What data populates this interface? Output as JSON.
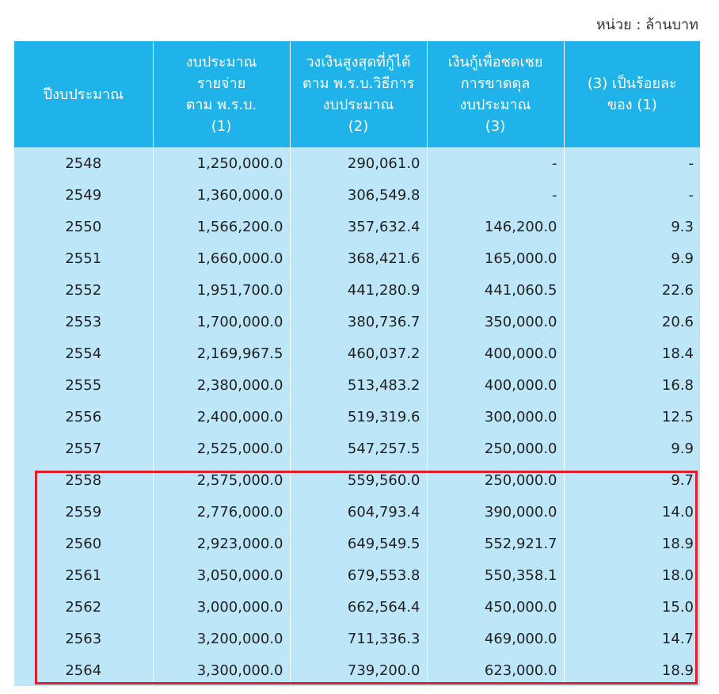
{
  "unit_note": "หน่วย : ล้านบาท",
  "headers": [
    {
      "lines": [
        "ปีงบประมาณ"
      ]
    },
    {
      "lines": [
        "งบประมาณ",
        "รายจ่าย",
        "ตาม พ.ร.บ.",
        "(1)"
      ]
    },
    {
      "lines": [
        "วงเงินสูงสุดที่กู้ได้",
        "ตาม พ.ร.บ.วิธีการ",
        "งบประมาณ",
        "(2)"
      ]
    },
    {
      "lines": [
        "เงินกู้เพื่อชดเชย",
        "การขาดดุล",
        "งบประมาณ",
        "(3)"
      ]
    },
    {
      "lines": [
        "(3) เป็นร้อยละ",
        "ของ (1)"
      ]
    }
  ],
  "rows": [
    [
      "2548",
      "1,250,000.0",
      "290,061.0",
      "-",
      "-"
    ],
    [
      "2549",
      "1,360,000.0",
      "306,549.8",
      "-",
      "-"
    ],
    [
      "2550",
      "1,566,200.0",
      "357,632.4",
      "146,200.0",
      "9.3"
    ],
    [
      "2551",
      "1,660,000.0",
      "368,421.6",
      "165,000.0",
      "9.9"
    ],
    [
      "2552",
      "1,951,700.0",
      "441,280.9",
      "441,060.5",
      "22.6"
    ],
    [
      "2553",
      "1,700,000.0",
      "380,736.7",
      "350,000.0",
      "20.6"
    ],
    [
      "2554",
      "2,169,967.5",
      "460,037.2",
      "400,000.0",
      "18.4"
    ],
    [
      "2555",
      "2,380,000.0",
      "513,483.2",
      "400,000.0",
      "16.8"
    ],
    [
      "2556",
      "2,400,000.0",
      "519,319.6",
      "300,000.0",
      "12.5"
    ],
    [
      "2557",
      "2,525,000.0",
      "547,257.5",
      "250,000.0",
      "9.9"
    ],
    [
      "2558",
      "2,575,000.0",
      "559,560.0",
      "250,000.0",
      "9.7"
    ],
    [
      "2559",
      "2,776,000.0",
      "604,793.4",
      "390,000.0",
      "14.0"
    ],
    [
      "2560",
      "2,923,000.0",
      "649,549.5",
      "552,921.7",
      "18.9"
    ],
    [
      "2561",
      "3,050,000.0",
      "679,553.8",
      "550,358.1",
      "18.0"
    ],
    [
      "2562",
      "3,000,000.0",
      "662,564.4",
      "450,000.0",
      "15.0"
    ],
    [
      "2563",
      "3,200,000.0",
      "711,336.3",
      "469,000.0",
      "14.7"
    ],
    [
      "2564",
      "3,300,000.0",
      "739,200.0",
      "623,000.0",
      "18.9"
    ]
  ],
  "colors": {
    "header_bg": "#1fb3ea",
    "row_bg": "#bde6f8",
    "highlight_border": "#e01f2b"
  }
}
